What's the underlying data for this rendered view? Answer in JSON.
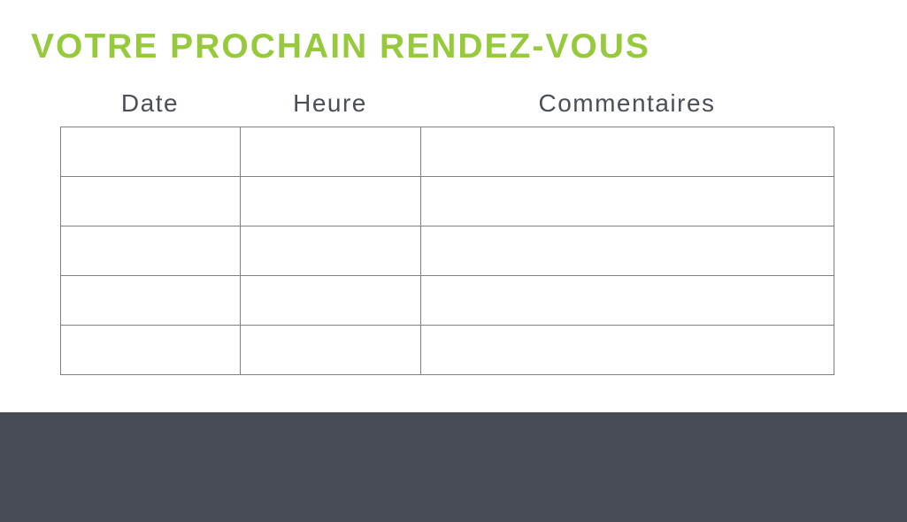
{
  "page": {
    "title": "VOTRE PROCHAIN RENDEZ-VOUS"
  },
  "colors": {
    "title_green": "#97C93C",
    "header_text": "#4A4F58",
    "table_border": "#7D8085",
    "footer_background": "#474C55",
    "page_background": "#FFFFFF"
  },
  "table": {
    "headers": [
      "Date",
      "Heure",
      "Commentaires"
    ],
    "rows": [
      [
        "",
        "",
        ""
      ],
      [
        "",
        "",
        ""
      ],
      [
        "",
        "",
        ""
      ],
      [
        "",
        "",
        ""
      ],
      [
        "",
        "",
        ""
      ]
    ]
  }
}
